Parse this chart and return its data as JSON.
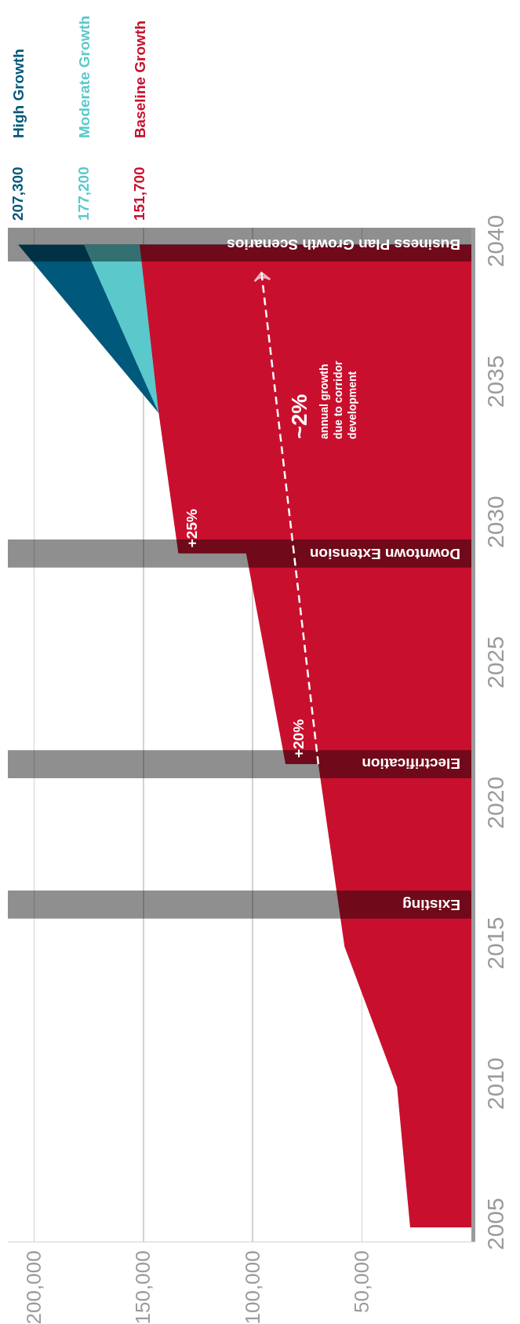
{
  "chart_data": {
    "type": "area",
    "orientation": "horizontal",
    "ylim": [
      2004.5,
      2040.6
    ],
    "yticks": [
      2005,
      2010,
      2015,
      2020,
      2025,
      2030,
      2035,
      2040
    ],
    "xlim": [
      212000,
      0
    ],
    "xticks": [
      {
        "value": 50000,
        "label": "50,000"
      },
      {
        "value": 100000,
        "label": "100,000"
      },
      {
        "value": 150000,
        "label": "150,000"
      },
      {
        "value": 200000,
        "label": "200,000"
      }
    ],
    "grid": "x",
    "series": [
      {
        "name": "High Growth",
        "color": "#00587a",
        "x": [
          2034,
          2040
        ],
        "values": [
          143000,
          207300
        ],
        "value_labels": [
          null,
          "207,300"
        ]
      },
      {
        "name": "Moderate Growth",
        "color": "#5bc8cc",
        "x": [
          2034,
          2040
        ],
        "values": [
          143000,
          177200
        ],
        "value_labels": [
          null,
          "177,200"
        ]
      },
      {
        "name": "Baseline Growth",
        "color": "#c8102e",
        "x": [
          2005,
          2010,
          2015,
          2021.5,
          2021.5,
          2029,
          2029,
          2034,
          2040
        ],
        "values": [
          28000,
          34000,
          58000,
          70000,
          85000,
          103000,
          134000,
          143000,
          151700
        ],
        "value_labels": [
          null,
          null,
          null,
          null,
          null,
          null,
          null,
          null,
          "151,700"
        ]
      },
      {
        "type": "line",
        "color": "#ffffff",
        "line_style": "dashed",
        "x": [
          2021.5,
          2039
        ],
        "values": [
          70000,
          96000
        ]
      }
    ],
    "bands": [
      {
        "axis": "y",
        "from": 2016,
        "to": 2017,
        "label": "Existing"
      },
      {
        "axis": "y",
        "from": 2021,
        "to": 2022,
        "label": "Electrification"
      },
      {
        "axis": "y",
        "from": 2028.5,
        "to": 2029.5,
        "label": "Downtown Extension"
      },
      {
        "axis": "y",
        "from": 2039.4,
        "to": 2040.6,
        "label": "Business Plan Growth Scenarios"
      }
    ],
    "annotations": [
      {
        "text": "+20%",
        "x": 85000,
        "y": 2021.5
      },
      {
        "text": "+25%",
        "x": 134000,
        "y": 2029
      },
      "~2%",
      "annual growth\ndue to corridor\ndevelopment"
    ]
  }
}
